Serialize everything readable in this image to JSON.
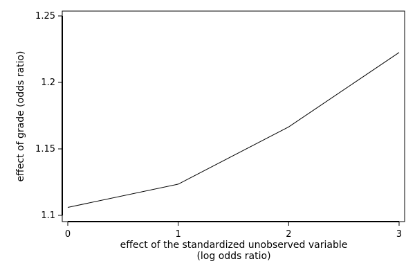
{
  "chart_data": {
    "type": "line",
    "xlabel_line1": "effect of the standardized unobserved variable",
    "xlabel_line2": "(log odds ratio)",
    "ylabel": "effect of grade (odds ratio)",
    "xlim": [
      0,
      3
    ],
    "ylim": [
      1.1,
      1.25
    ],
    "x_ticks": [
      0,
      1,
      2,
      3
    ],
    "x_tick_labels": [
      "0",
      "1",
      "2",
      "3"
    ],
    "y_ticks": [
      1.1,
      1.15,
      1.2,
      1.25
    ],
    "y_tick_labels": [
      "1.1",
      "1.15",
      "1.2",
      "1.25"
    ],
    "grid": false,
    "line_color": "#000000",
    "series": [
      {
        "x": [
          0,
          1,
          2,
          3
        ],
        "y": [
          1.106,
          1.1235,
          1.1665,
          1.2225
        ]
      }
    ]
  }
}
